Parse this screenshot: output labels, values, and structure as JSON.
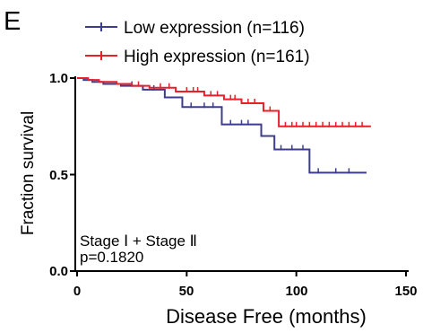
{
  "panel_label": "E",
  "chart_data": {
    "type": "line",
    "step": true,
    "xlabel": "Disease Free (months)",
    "ylabel": "Fraction survival",
    "xlim": [
      0,
      150
    ],
    "ylim": [
      0.0,
      1.0
    ],
    "x_ticks": [
      0,
      50,
      100,
      150
    ],
    "x_tick_labels": [
      "0",
      "50",
      "100",
      "150"
    ],
    "y_ticks": [
      0.0,
      0.5,
      1.0
    ],
    "y_tick_labels": [
      "0.0",
      "0.5",
      "1.0"
    ],
    "grid": false,
    "legend_position": "top",
    "annotations": [
      "Stage Ⅰ + Stage Ⅱ",
      "p=0.1820"
    ],
    "series": [
      {
        "name": "Low expression (n=116)",
        "color": "#3d3d8f",
        "x": [
          0,
          3,
          7,
          12,
          20,
          30,
          40,
          48,
          66,
          84,
          90,
          106,
          132
        ],
        "y": [
          1.0,
          0.99,
          0.98,
          0.97,
          0.96,
          0.94,
          0.9,
          0.85,
          0.76,
          0.7,
          0.63,
          0.51,
          0.51
        ],
        "censored": [
          [
            25,
            0.96
          ],
          [
            35,
            0.94
          ],
          [
            52,
            0.85
          ],
          [
            58,
            0.85
          ],
          [
            62,
            0.85
          ],
          [
            70,
            0.76
          ],
          [
            75,
            0.76
          ],
          [
            78,
            0.76
          ],
          [
            93,
            0.63
          ],
          [
            98,
            0.63
          ],
          [
            103,
            0.63
          ],
          [
            110,
            0.51
          ],
          [
            118,
            0.51
          ],
          [
            124,
            0.51
          ]
        ]
      },
      {
        "name": "High expression (n=161)",
        "color": "#e8202a",
        "x": [
          0,
          5,
          10,
          18,
          25,
          33,
          45,
          58,
          67,
          75,
          85,
          92,
          134
        ],
        "y": [
          1.0,
          0.99,
          0.98,
          0.97,
          0.96,
          0.95,
          0.93,
          0.91,
          0.89,
          0.87,
          0.83,
          0.75,
          0.75
        ],
        "censored": [
          [
            28,
            0.96
          ],
          [
            38,
            0.95
          ],
          [
            42,
            0.95
          ],
          [
            50,
            0.93
          ],
          [
            53,
            0.93
          ],
          [
            55,
            0.93
          ],
          [
            61,
            0.91
          ],
          [
            64,
            0.91
          ],
          [
            70,
            0.89
          ],
          [
            72,
            0.89
          ],
          [
            78,
            0.87
          ],
          [
            81,
            0.87
          ],
          [
            88,
            0.83
          ],
          [
            95,
            0.75
          ],
          [
            98,
            0.75
          ],
          [
            100,
            0.75
          ],
          [
            103,
            0.75
          ],
          [
            106,
            0.75
          ],
          [
            109,
            0.75
          ],
          [
            112,
            0.75
          ],
          [
            115,
            0.75
          ],
          [
            118,
            0.75
          ],
          [
            121,
            0.75
          ],
          [
            124,
            0.75
          ],
          [
            127,
            0.75
          ],
          [
            130,
            0.75
          ]
        ]
      }
    ]
  }
}
